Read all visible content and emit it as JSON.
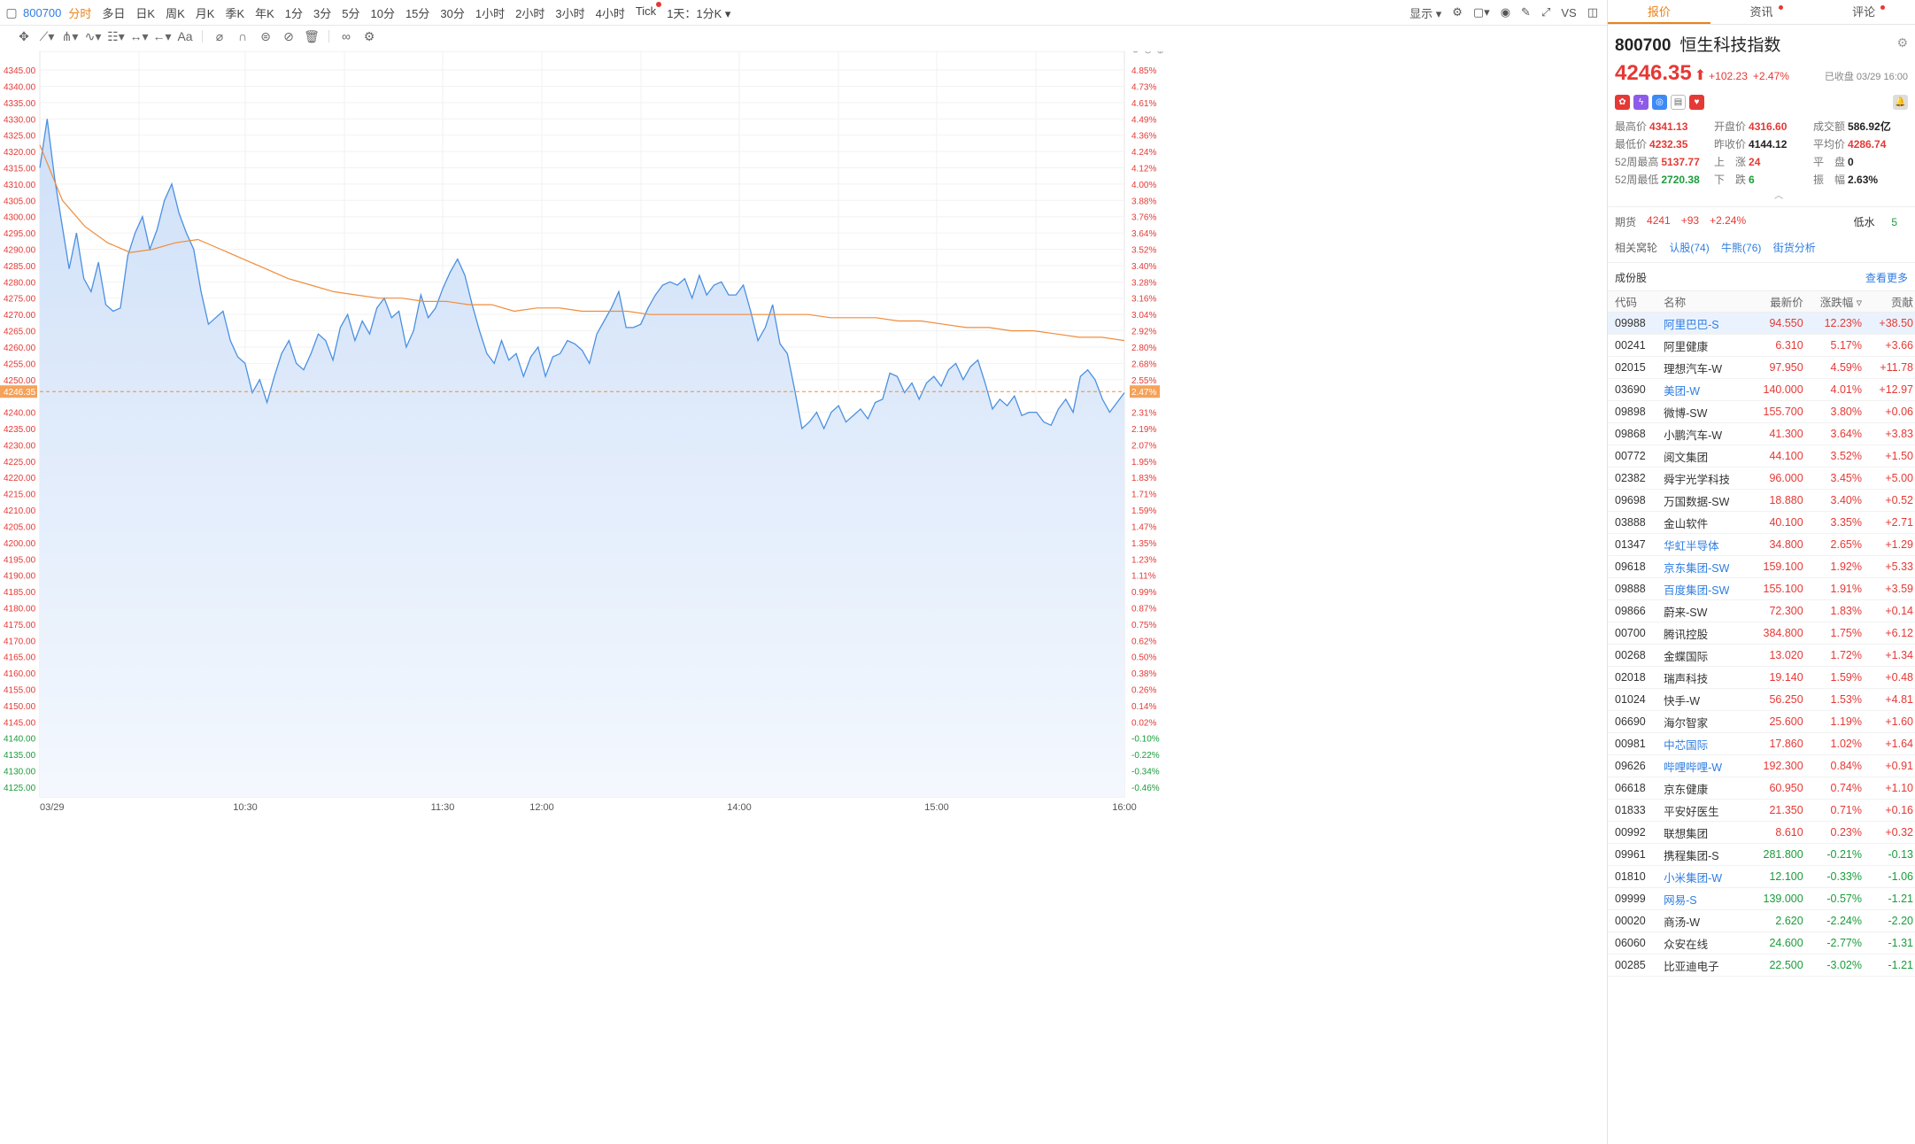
{
  "toolbar": {
    "symbol": "800700",
    "intervals": [
      "分时",
      "多日",
      "日K",
      "周K",
      "月K",
      "季K",
      "年K",
      "1分",
      "3分",
      "5分",
      "10分",
      "15分",
      "30分",
      "1小时",
      "2小时",
      "3小时",
      "4小时",
      "Tick",
      "1天：1分K"
    ],
    "active_interval": "分时",
    "display_label": "显示"
  },
  "chart_data": {
    "type": "line",
    "title": "",
    "y_left_ticks": [
      "4345.00",
      "4340.00",
      "4335.00",
      "4330.00",
      "4325.00",
      "4320.00",
      "4315.00",
      "4310.00",
      "4305.00",
      "4300.00",
      "4295.00",
      "4290.00",
      "4285.00",
      "4280.00",
      "4275.00",
      "4270.00",
      "4265.00",
      "4260.00",
      "4255.00",
      "4250.00",
      "4246.35",
      "4240.00",
      "4235.00",
      "4230.00",
      "4225.00",
      "4220.00",
      "4215.00",
      "4210.00",
      "4205.00",
      "4200.00",
      "4195.00",
      "4190.00",
      "4185.00",
      "4180.00",
      "4175.00",
      "4170.00",
      "4165.00",
      "4160.00",
      "4155.00",
      "4150.00",
      "4145.00",
      "4140.00",
      "4135.00",
      "4130.00",
      "4125.00"
    ],
    "y_right_ticks": [
      "4.85%",
      "4.73%",
      "4.61%",
      "4.49%",
      "4.36%",
      "4.24%",
      "4.12%",
      "4.00%",
      "3.88%",
      "3.76%",
      "3.64%",
      "3.52%",
      "3.40%",
      "3.28%",
      "3.16%",
      "3.04%",
      "2.92%",
      "2.80%",
      "2.68%",
      "2.55%",
      "2.47%",
      "2.31%",
      "2.19%",
      "2.07%",
      "1.95%",
      "1.83%",
      "1.71%",
      "1.59%",
      "1.47%",
      "1.35%",
      "1.23%",
      "1.11%",
      "0.99%",
      "0.87%",
      "0.75%",
      "0.62%",
      "0.50%",
      "0.38%",
      "0.26%",
      "0.14%",
      "0.02%",
      "-0.10%",
      "-0.22%",
      "-0.34%",
      "-0.46%"
    ],
    "x_labels": [
      "03/29",
      "10:30",
      "11:30",
      "12:00",
      "14:00",
      "15:00",
      "16:00"
    ],
    "ylim": [
      4122,
      4348
    ],
    "prev_close": 4144.12,
    "current_price": 4246.35,
    "current_label": "4246.35",
    "current_pct_label": "2.47%",
    "series": [
      {
        "values": [
          4315,
          4330,
          4312,
          4298,
          4284,
          4295,
          4281,
          4277,
          4286,
          4273,
          4271,
          4272,
          4288,
          4295,
          4300,
          4290,
          4296,
          4305,
          4310,
          4301,
          4295,
          4290,
          4277,
          4267,
          4269,
          4271,
          4262,
          4257,
          4255,
          4246,
          4250,
          4243,
          4251,
          4258,
          4262,
          4255,
          4253,
          4258,
          4264,
          4262,
          4256,
          4266,
          4270,
          4262,
          4268,
          4264,
          4272,
          4275,
          4269,
          4271,
          4260,
          4265,
          4276,
          4269,
          4272,
          4278,
          4283,
          4287,
          4282,
          4273,
          4265,
          4258,
          4255,
          4262,
          4256,
          4258,
          4251,
          4257,
          4260,
          4251,
          4257,
          4258,
          4262,
          4261,
          4259,
          4255,
          4264,
          4268,
          4272,
          4277,
          4266,
          4266,
          4267,
          4272,
          4276,
          4279,
          4280,
          4279,
          4281,
          4275,
          4282,
          4276,
          4279,
          4280,
          4276,
          4276,
          4279,
          4271,
          4262,
          4266,
          4273,
          4261,
          4258,
          4247,
          4235,
          4237,
          4240,
          4235,
          4240,
          4242,
          4237,
          4239,
          4241,
          4238,
          4243,
          4244,
          4252,
          4251,
          4246,
          4249,
          4244,
          4249,
          4251,
          4248,
          4253,
          4255,
          4250,
          4254,
          4256,
          4249,
          4241,
          4244,
          4242,
          4245,
          4239,
          4240,
          4240,
          4237,
          4236,
          4241,
          4244,
          4240,
          4251,
          4253,
          4250,
          4244,
          4240,
          4243,
          4246
        ],
        "name": ""
      },
      {
        "values": [
          4322,
          4305,
          4297,
          4292,
          4289,
          4290,
          4292,
          4293,
          4290,
          4287,
          4284,
          4281,
          4279,
          4277,
          4276,
          4275,
          4275,
          4274,
          4274,
          4273,
          4273,
          4271,
          4272,
          4272,
          4271,
          4271,
          4271,
          4270,
          4270,
          4270,
          4270,
          4270,
          4270,
          4270,
          4270,
          4269,
          4269,
          4269,
          4268,
          4268,
          4267,
          4266,
          4266,
          4265,
          4265,
          4264,
          4263,
          4263,
          4262
        ],
        "name": ""
      }
    ]
  },
  "quote": {
    "tabs": [
      "报价",
      "资讯",
      "评论"
    ],
    "code": "800700",
    "name": "恒生科技指数",
    "price": "4246.35",
    "change": "+102.23",
    "change_pct": "+2.47%",
    "closed_label": "已收盘 03/29 16:00",
    "stats": [
      {
        "k": "最高价",
        "v": "4341.13",
        "c": "red"
      },
      {
        "k": "开盘价",
        "v": "4316.60",
        "c": "red"
      },
      {
        "k": "成交额",
        "v": "586.92亿",
        "c": "dark"
      },
      {
        "k": "最低价",
        "v": "4232.35",
        "c": "red"
      },
      {
        "k": "昨收价",
        "v": "4144.12",
        "c": "dark"
      },
      {
        "k": "平均价",
        "v": "4286.74",
        "c": "red"
      },
      {
        "k": "52周最高",
        "v": "5137.77",
        "c": "red"
      },
      {
        "k": "上　涨",
        "v": "24",
        "c": "red"
      },
      {
        "k": "平　盘",
        "v": "0",
        "c": "dark"
      },
      {
        "k": "52周最低",
        "v": "2720.38",
        "c": "green"
      },
      {
        "k": "下　跌",
        "v": "6",
        "c": "green"
      },
      {
        "k": "振　幅",
        "v": "2.63%",
        "c": "dark"
      }
    ],
    "futures": {
      "label": "期货",
      "price": "4241",
      "chg": "+93",
      "pct": "+2.24%",
      "lower_label": "低水",
      "lower_value": "5"
    },
    "warrants": {
      "label": "相关窝轮",
      "call": "认股(74)",
      "bull": "牛熊(76)",
      "street": "街货分析"
    },
    "constituents_title": "成份股",
    "more_label": "查看更多",
    "table_headers": [
      "代码",
      "名称",
      "最新价",
      "涨跌幅",
      "贡献"
    ],
    "rows": [
      {
        "code": "09988",
        "name": "阿里巴巴-S",
        "price": "94.550",
        "pct": "12.23%",
        "contrib": "+38.50",
        "up": true,
        "link": true,
        "sel": true
      },
      {
        "code": "00241",
        "name": "阿里健康",
        "price": "6.310",
        "pct": "5.17%",
        "contrib": "+3.66",
        "up": true,
        "link": false
      },
      {
        "code": "02015",
        "name": "理想汽车-W",
        "price": "97.950",
        "pct": "4.59%",
        "contrib": "+11.78",
        "up": true,
        "link": false
      },
      {
        "code": "03690",
        "name": "美团-W",
        "price": "140.000",
        "pct": "4.01%",
        "contrib": "+12.97",
        "up": true,
        "link": true
      },
      {
        "code": "09898",
        "name": "微博-SW",
        "price": "155.700",
        "pct": "3.80%",
        "contrib": "+0.06",
        "up": true,
        "link": false
      },
      {
        "code": "09868",
        "name": "小鹏汽车-W",
        "price": "41.300",
        "pct": "3.64%",
        "contrib": "+3.83",
        "up": true,
        "link": false
      },
      {
        "code": "00772",
        "name": "阅文集团",
        "price": "44.100",
        "pct": "3.52%",
        "contrib": "+1.50",
        "up": true,
        "link": false
      },
      {
        "code": "02382",
        "name": "舜宇光学科技",
        "price": "96.000",
        "pct": "3.45%",
        "contrib": "+5.00",
        "up": true,
        "link": false
      },
      {
        "code": "09698",
        "name": "万国数据-SW",
        "price": "18.880",
        "pct": "3.40%",
        "contrib": "+0.52",
        "up": true,
        "link": false
      },
      {
        "code": "03888",
        "name": "金山软件",
        "price": "40.100",
        "pct": "3.35%",
        "contrib": "+2.71",
        "up": true,
        "link": false
      },
      {
        "code": "01347",
        "name": "华虹半导体",
        "price": "34.800",
        "pct": "2.65%",
        "contrib": "+1.29",
        "up": true,
        "link": true
      },
      {
        "code": "09618",
        "name": "京东集团-SW",
        "price": "159.100",
        "pct": "1.92%",
        "contrib": "+5.33",
        "up": true,
        "link": true
      },
      {
        "code": "09888",
        "name": "百度集团-SW",
        "price": "155.100",
        "pct": "1.91%",
        "contrib": "+3.59",
        "up": true,
        "link": true
      },
      {
        "code": "09866",
        "name": "蔚来-SW",
        "price": "72.300",
        "pct": "1.83%",
        "contrib": "+0.14",
        "up": true,
        "link": false
      },
      {
        "code": "00700",
        "name": "腾讯控股",
        "price": "384.800",
        "pct": "1.75%",
        "contrib": "+6.12",
        "up": true,
        "link": false
      },
      {
        "code": "00268",
        "name": "金蝶国际",
        "price": "13.020",
        "pct": "1.72%",
        "contrib": "+1.34",
        "up": true,
        "link": false
      },
      {
        "code": "02018",
        "name": "瑞声科技",
        "price": "19.140",
        "pct": "1.59%",
        "contrib": "+0.48",
        "up": true,
        "link": false
      },
      {
        "code": "01024",
        "name": "快手-W",
        "price": "56.250",
        "pct": "1.53%",
        "contrib": "+4.81",
        "up": true,
        "link": false
      },
      {
        "code": "06690",
        "name": "海尔智家",
        "price": "25.600",
        "pct": "1.19%",
        "contrib": "+1.60",
        "up": true,
        "link": false
      },
      {
        "code": "00981",
        "name": "中芯国际",
        "price": "17.860",
        "pct": "1.02%",
        "contrib": "+1.64",
        "up": true,
        "link": true
      },
      {
        "code": "09626",
        "name": "哔哩哔哩-W",
        "price": "192.300",
        "pct": "0.84%",
        "contrib": "+0.91",
        "up": true,
        "link": true
      },
      {
        "code": "06618",
        "name": "京东健康",
        "price": "60.950",
        "pct": "0.74%",
        "contrib": "+1.10",
        "up": true,
        "link": false
      },
      {
        "code": "01833",
        "name": "平安好医生",
        "price": "21.350",
        "pct": "0.71%",
        "contrib": "+0.16",
        "up": true,
        "link": false
      },
      {
        "code": "00992",
        "name": "联想集团",
        "price": "8.610",
        "pct": "0.23%",
        "contrib": "+0.32",
        "up": true,
        "link": false
      },
      {
        "code": "09961",
        "name": "携程集团-S",
        "price": "281.800",
        "pct": "-0.21%",
        "contrib": "-0.13",
        "up": false,
        "link": false
      },
      {
        "code": "01810",
        "name": "小米集团-W",
        "price": "12.100",
        "pct": "-0.33%",
        "contrib": "-1.06",
        "up": false,
        "link": true
      },
      {
        "code": "09999",
        "name": "网易-S",
        "price": "139.000",
        "pct": "-0.57%",
        "contrib": "-1.21",
        "up": false,
        "link": true
      },
      {
        "code": "00020",
        "name": "商汤-W",
        "price": "2.620",
        "pct": "-2.24%",
        "contrib": "-2.20",
        "up": false,
        "link": false
      },
      {
        "code": "06060",
        "name": "众安在线",
        "price": "24.600",
        "pct": "-2.77%",
        "contrib": "-1.31",
        "up": false,
        "link": false
      },
      {
        "code": "00285",
        "name": "比亚迪电子",
        "price": "22.500",
        "pct": "-3.02%",
        "contrib": "-1.21",
        "up": false,
        "link": false
      }
    ]
  },
  "colors": {
    "accent": "#e8831a",
    "up": "#e53935",
    "down": "#1a9c3a",
    "link": "#2f7de1",
    "line": "#4a90e2",
    "avg": "#f08c3a"
  }
}
